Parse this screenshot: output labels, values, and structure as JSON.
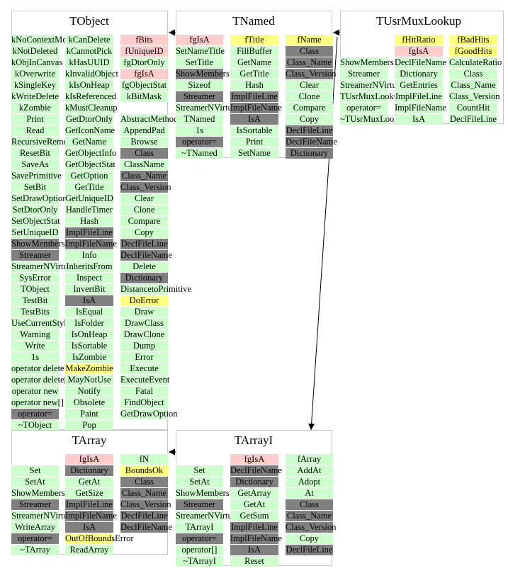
{
  "classes": [
    {
      "id": "TObject",
      "name": "TObject",
      "columns": [
        [
          {
            "t": "kNoContextMenu",
            "k": "m"
          },
          {
            "t": "kNotDeleted",
            "k": "m"
          },
          {
            "t": "kObjInCanvas",
            "k": "m"
          },
          {
            "t": "kOverwrite",
            "k": "m"
          },
          {
            "t": "kSingleKey",
            "k": "m"
          },
          {
            "t": "kWriteDelete",
            "k": "m"
          },
          {
            "t": "kZombie",
            "k": "m"
          },
          {
            "t": "Print",
            "k": "m"
          },
          {
            "t": "Read",
            "k": "m"
          },
          {
            "t": "RecursiveRemove",
            "k": "m"
          },
          {
            "t": "ResetBit",
            "k": "m"
          },
          {
            "t": "SaveAs",
            "k": "m"
          },
          {
            "t": "SavePrimitive",
            "k": "m"
          },
          {
            "t": "SetBit",
            "k": "m"
          },
          {
            "t": "SetDrawOption",
            "k": "m"
          },
          {
            "t": "SetDtorOnly",
            "k": "m"
          },
          {
            "t": "SetObjectStat",
            "k": "m"
          },
          {
            "t": "SetUniqueID",
            "k": "m"
          },
          {
            "t": "ShowMembers",
            "k": "g"
          },
          {
            "t": "Streamer",
            "k": "g"
          },
          {
            "t": "StreamerNVirtual",
            "k": "m"
          },
          {
            "t": "SysError",
            "k": "m"
          },
          {
            "t": "TObject",
            "k": "m"
          },
          {
            "t": "TestBit",
            "k": "m"
          },
          {
            "t": "TestBits",
            "k": "m"
          },
          {
            "t": "UseCurrentStyle",
            "k": "m"
          },
          {
            "t": "Warning",
            "k": "m"
          },
          {
            "t": "Write",
            "k": "m"
          },
          {
            "t": "1s",
            "k": "m"
          },
          {
            "t": "operator delete",
            "k": "m"
          },
          {
            "t": "operator delete[]",
            "k": "m"
          },
          {
            "t": "operator new",
            "k": "m"
          },
          {
            "t": "operator new[]",
            "k": "m"
          },
          {
            "t": "operator=",
            "k": "g"
          },
          {
            "t": "~TObject",
            "k": "m"
          }
        ],
        [
          {
            "t": "kCanDelete",
            "k": "m"
          },
          {
            "t": "kCannotPick",
            "k": "m"
          },
          {
            "t": "kHasUUID",
            "k": "m"
          },
          {
            "t": "kInvalidObject",
            "k": "m"
          },
          {
            "t": "kIsOnHeap",
            "k": "m"
          },
          {
            "t": "kIsReferenced",
            "k": "m"
          },
          {
            "t": "kMustCleanup",
            "k": "m"
          },
          {
            "t": "GetDtorOnly",
            "k": "m"
          },
          {
            "t": "GetIconName",
            "k": "m"
          },
          {
            "t": "GetName",
            "k": "m"
          },
          {
            "t": "GetObjectInfo",
            "k": "m"
          },
          {
            "t": "GetObjectStat",
            "k": "m"
          },
          {
            "t": "GetOption",
            "k": "m"
          },
          {
            "t": "GetTitle",
            "k": "m"
          },
          {
            "t": "GetUniqueID",
            "k": "m"
          },
          {
            "t": "HandleTimer",
            "k": "m"
          },
          {
            "t": "Hash",
            "k": "m"
          },
          {
            "t": "ImplFileLine",
            "k": "g"
          },
          {
            "t": "ImplFileName",
            "k": "g"
          },
          {
            "t": "Info",
            "k": "m"
          },
          {
            "t": "InheritsFrom",
            "k": "m"
          },
          {
            "t": "Inspect",
            "k": "m"
          },
          {
            "t": "InvertBit",
            "k": "m"
          },
          {
            "t": "IsA",
            "k": "g"
          },
          {
            "t": "IsEqual",
            "k": "m"
          },
          {
            "t": "IsFolder",
            "k": "m"
          },
          {
            "t": "IsOnHeap",
            "k": "m"
          },
          {
            "t": "IsSortable",
            "k": "m"
          },
          {
            "t": "IsZombie",
            "k": "m"
          },
          {
            "t": "MakeZombie",
            "k": "y"
          },
          {
            "t": "MayNotUse",
            "k": "m"
          },
          {
            "t": "Notify",
            "k": "m"
          },
          {
            "t": "Obsolete",
            "k": "m"
          },
          {
            "t": "Paint",
            "k": "m"
          },
          {
            "t": "Pop",
            "k": "m"
          }
        ],
        [
          {
            "t": "fBits",
            "k": "p"
          },
          {
            "t": "fUniqueID",
            "k": "p"
          },
          {
            "t": "fgDtorOnly",
            "k": "m"
          },
          {
            "t": "fgIsA",
            "k": "p"
          },
          {
            "t": "fgObjectStat",
            "k": "m"
          },
          {
            "t": "kBitMask",
            "k": "m"
          },
          {
            "t": "",
            "k": "none"
          },
          {
            "t": "AbstractMethod",
            "k": "m"
          },
          {
            "t": "AppendPad",
            "k": "m"
          },
          {
            "t": "Browse",
            "k": "m"
          },
          {
            "t": "Class",
            "k": "g"
          },
          {
            "t": "ClassName",
            "k": "m"
          },
          {
            "t": "Class_Name",
            "k": "g"
          },
          {
            "t": "Class_Version",
            "k": "g"
          },
          {
            "t": "Clear",
            "k": "m"
          },
          {
            "t": "Clone",
            "k": "m"
          },
          {
            "t": "Compare",
            "k": "m"
          },
          {
            "t": "Copy",
            "k": "m"
          },
          {
            "t": "DeclFileLine",
            "k": "g"
          },
          {
            "t": "DeclFileName",
            "k": "g"
          },
          {
            "t": "Delete",
            "k": "m"
          },
          {
            "t": "Dictionary",
            "k": "g"
          },
          {
            "t": "DistancetoPrimitive",
            "k": "m"
          },
          {
            "t": "DoError",
            "k": "y"
          },
          {
            "t": "Draw",
            "k": "m"
          },
          {
            "t": "DrawClass",
            "k": "m"
          },
          {
            "t": "DrawClone",
            "k": "m"
          },
          {
            "t": "Dump",
            "k": "m"
          },
          {
            "t": "Error",
            "k": "m"
          },
          {
            "t": "Execute",
            "k": "m"
          },
          {
            "t": "ExecuteEvent",
            "k": "m"
          },
          {
            "t": "Fatal",
            "k": "m"
          },
          {
            "t": "FindObject",
            "k": "m"
          },
          {
            "t": "GetDrawOption",
            "k": "m"
          }
        ]
      ]
    },
    {
      "id": "TNamed",
      "name": "TNamed",
      "columns": [
        [
          {
            "t": "fgIsA",
            "k": "p"
          },
          {
            "t": "SetNameTitle",
            "k": "m"
          },
          {
            "t": "SetTitle",
            "k": "m"
          },
          {
            "t": "ShowMembers",
            "k": "g"
          },
          {
            "t": "Sizeof",
            "k": "m"
          },
          {
            "t": "Streamer",
            "k": "g"
          },
          {
            "t": "StreamerNVirtual",
            "k": "m"
          },
          {
            "t": "TNamed",
            "k": "m"
          },
          {
            "t": "1s",
            "k": "m"
          },
          {
            "t": "operator=",
            "k": "g"
          },
          {
            "t": "~TNamed",
            "k": "m"
          }
        ],
        [
          {
            "t": "fTitle",
            "k": "y"
          },
          {
            "t": "FillBuffer",
            "k": "m"
          },
          {
            "t": "GetName",
            "k": "m"
          },
          {
            "t": "GetTitle",
            "k": "m"
          },
          {
            "t": "Hash",
            "k": "m"
          },
          {
            "t": "ImplFileLine",
            "k": "g"
          },
          {
            "t": "ImplFileName",
            "k": "g"
          },
          {
            "t": "IsA",
            "k": "g"
          },
          {
            "t": "IsSortable",
            "k": "m"
          },
          {
            "t": "Print",
            "k": "m"
          },
          {
            "t": "SetName",
            "k": "m"
          }
        ],
        [
          {
            "t": "fName",
            "k": "y"
          },
          {
            "t": "Class",
            "k": "g"
          },
          {
            "t": "Class_Name",
            "k": "g"
          },
          {
            "t": "Class_Version",
            "k": "g"
          },
          {
            "t": "Clear",
            "k": "m"
          },
          {
            "t": "Clone",
            "k": "m"
          },
          {
            "t": "Compare",
            "k": "m"
          },
          {
            "t": "Copy",
            "k": "m"
          },
          {
            "t": "DeclFileLine",
            "k": "g"
          },
          {
            "t": "DeclFileName",
            "k": "g"
          },
          {
            "t": "Dictionary",
            "k": "g"
          }
        ]
      ]
    },
    {
      "id": "TUsrMuxLookup",
      "name": "TUsrMuxLookup",
      "columns": [
        [
          {
            "t": "",
            "k": "none"
          },
          {
            "t": "",
            "k": "none"
          },
          {
            "t": "ShowMembers",
            "k": "m"
          },
          {
            "t": "Streamer",
            "k": "m"
          },
          {
            "t": "StreamerNVirtual",
            "k": "m"
          },
          {
            "t": "TUsrMuxLookup",
            "k": "m"
          },
          {
            "t": "operator=",
            "k": "m"
          },
          {
            "t": "~TUsrMuxLookup",
            "k": "m"
          }
        ],
        [
          {
            "t": "fHitRatio",
            "k": "y"
          },
          {
            "t": "fgIsA",
            "k": "p"
          },
          {
            "t": "DeclFileName",
            "k": "m"
          },
          {
            "t": "Dictionary",
            "k": "m"
          },
          {
            "t": "GetEntries",
            "k": "m"
          },
          {
            "t": "ImplFileLine",
            "k": "m"
          },
          {
            "t": "ImplFileName",
            "k": "m"
          },
          {
            "t": "IsA",
            "k": "m"
          }
        ],
        [
          {
            "t": "fBadHits",
            "k": "y"
          },
          {
            "t": "fGoodHits",
            "k": "y"
          },
          {
            "t": "CalculateRatio",
            "k": "m"
          },
          {
            "t": "Class",
            "k": "m"
          },
          {
            "t": "Class_Name",
            "k": "m"
          },
          {
            "t": "Class_Version",
            "k": "m"
          },
          {
            "t": "CountHit",
            "k": "m"
          },
          {
            "t": "DeclFileLine",
            "k": "m"
          }
        ]
      ]
    },
    {
      "id": "TArray",
      "name": "TArray",
      "columns": [
        [
          {
            "t": "",
            "k": "none"
          },
          {
            "t": "Set",
            "k": "m"
          },
          {
            "t": "SetAt",
            "k": "m"
          },
          {
            "t": "ShowMembers",
            "k": "m"
          },
          {
            "t": "Streamer",
            "k": "g"
          },
          {
            "t": "StreamerNVirtual",
            "k": "m"
          },
          {
            "t": "WriteArray",
            "k": "m"
          },
          {
            "t": "operator=",
            "k": "g"
          },
          {
            "t": "~TArray",
            "k": "m"
          }
        ],
        [
          {
            "t": "fgIsA",
            "k": "p"
          },
          {
            "t": "Dictionary",
            "k": "g"
          },
          {
            "t": "GetAt",
            "k": "m"
          },
          {
            "t": "GetSize",
            "k": "m"
          },
          {
            "t": "ImplFileLine",
            "k": "g"
          },
          {
            "t": "ImplFileName",
            "k": "g"
          },
          {
            "t": "IsA",
            "k": "g"
          },
          {
            "t": "OutOfBoundsError",
            "k": "y"
          },
          {
            "t": "ReadArray",
            "k": "m"
          }
        ],
        [
          {
            "t": "fN",
            "k": "m"
          },
          {
            "t": "BoundsOk",
            "k": "y"
          },
          {
            "t": "Class",
            "k": "g"
          },
          {
            "t": "Class_Name",
            "k": "g"
          },
          {
            "t": "Class_Version",
            "k": "g"
          },
          {
            "t": "DeclFileLine",
            "k": "g"
          },
          {
            "t": "DeclFileName",
            "k": "g"
          }
        ]
      ]
    },
    {
      "id": "TArrayI",
      "name": "TArrayI",
      "columns": [
        [
          {
            "t": "",
            "k": "none"
          },
          {
            "t": "Set",
            "k": "m"
          },
          {
            "t": "SetAt",
            "k": "m"
          },
          {
            "t": "ShowMembers",
            "k": "m"
          },
          {
            "t": "Streamer",
            "k": "g"
          },
          {
            "t": "StreamerNVirtual",
            "k": "m"
          },
          {
            "t": "TArrayI",
            "k": "m"
          },
          {
            "t": "operator=",
            "k": "g"
          },
          {
            "t": "operator[]",
            "k": "m"
          },
          {
            "t": "~TArrayI",
            "k": "m"
          }
        ],
        [
          {
            "t": "fgIsA",
            "k": "p"
          },
          {
            "t": "DeclFileName",
            "k": "g"
          },
          {
            "t": "Dictionary",
            "k": "g"
          },
          {
            "t": "GetArray",
            "k": "m"
          },
          {
            "t": "GetAt",
            "k": "m"
          },
          {
            "t": "GetSum",
            "k": "m"
          },
          {
            "t": "ImplFileLine",
            "k": "g"
          },
          {
            "t": "ImplFileName",
            "k": "g"
          },
          {
            "t": "IsA",
            "k": "g"
          },
          {
            "t": "Reset",
            "k": "m"
          }
        ],
        [
          {
            "t": "fArray",
            "k": "m"
          },
          {
            "t": "AddAt",
            "k": "m"
          },
          {
            "t": "Adopt",
            "k": "m"
          },
          {
            "t": "At",
            "k": "m"
          },
          {
            "t": "Class",
            "k": "g"
          },
          {
            "t": "Class_Name",
            "k": "g"
          },
          {
            "t": "Class_Version",
            "k": "g"
          },
          {
            "t": "Copy",
            "k": "m"
          },
          {
            "t": "DeclFileLine",
            "k": "g"
          }
        ]
      ]
    }
  ],
  "links": [
    {
      "from": "TNamed",
      "to": "TObject",
      "kind": "inherits"
    },
    {
      "from": "TUsrMuxLookup",
      "to": "TNamed",
      "kind": "inherits"
    },
    {
      "from": "TUsrMuxLookup",
      "to": "TArrayI",
      "kind": "uses"
    },
    {
      "from": "TArrayI",
      "to": "TArray",
      "kind": "inherits"
    }
  ],
  "colors": {
    "public_method": "#ccffcc",
    "hidden_method": "#808080",
    "private_member": "#ffcccc",
    "protected_member": "#ffff80",
    "frame": "#c8c8c8",
    "arrow": "#000000"
  }
}
